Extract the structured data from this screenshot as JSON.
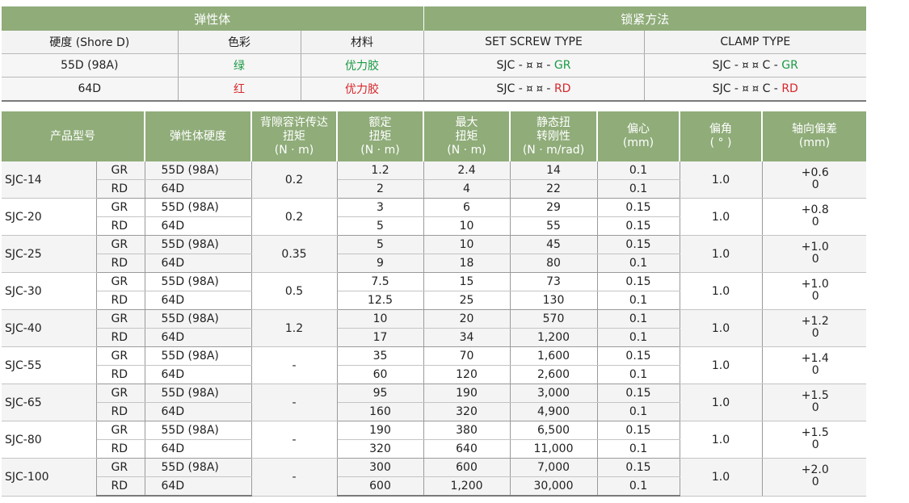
{
  "top_table": {
    "group_headers": [
      "弹性体",
      "锁紧方法"
    ],
    "subheaders": [
      "硬度 (Shore D)",
      "色彩",
      "材料",
      "SET SCREW TYPE",
      "CLAMP TYPE"
    ],
    "rows": [
      {
        "hardness": "55D (98A)",
        "color": "绿",
        "material": "优力胶",
        "set_screw": {
          "prefix": "SJC - ",
          "boxes": "¤ ¤",
          "sep": " - ",
          "code": "GR"
        },
        "clamp": {
          "prefix": "SJC - ",
          "boxes": "¤ ¤",
          "sep": " C - ",
          "code": "GR"
        }
      },
      {
        "hardness": "64D",
        "color": "红",
        "material": "优力胶",
        "set_screw": {
          "prefix": "SJC - ",
          "boxes": "¤ ¤",
          "sep": " - ",
          "code": "RD"
        },
        "clamp": {
          "prefix": "SJC - ",
          "boxes": "¤ ¤",
          "sep": " C - ",
          "code": "RD"
        }
      }
    ]
  },
  "main_table": {
    "headers": [
      [
        "产品型号"
      ],
      [
        "弹性体硬度"
      ],
      [
        "背隙容许传达",
        "扭矩",
        "(N · m)"
      ],
      [
        "额定",
        "扭矩",
        "(N · m)"
      ],
      [
        "最大",
        "扭矩",
        "(N · m)"
      ],
      [
        "静态扭",
        "转刚性",
        "(N · m/rad)"
      ],
      [
        "偏心",
        "(mm)"
      ],
      [
        "偏角",
        "( ° )"
      ],
      [
        "轴向偏差",
        "(mm)"
      ]
    ],
    "models": [
      {
        "model": "SJC-14",
        "backlash_torque": "0.2",
        "angle": "1.0",
        "axial_upper": "+0.6",
        "axial_lower": "0",
        "rows": [
          {
            "code": "GR",
            "hardness": "55D  (98A)",
            "rated": "1.2",
            "max": "2.4",
            "stiffness": "14",
            "eccentric": "0.1"
          },
          {
            "code": "RD",
            "hardness": "64D",
            "rated": "2",
            "max": "4",
            "stiffness": "22",
            "eccentric": "0.1"
          }
        ]
      },
      {
        "model": "SJC-20",
        "backlash_torque": "0.2",
        "angle": "1.0",
        "axial_upper": "+0.8",
        "axial_lower": "0",
        "rows": [
          {
            "code": "GR",
            "hardness": "55D  (98A)",
            "rated": "3",
            "max": "6",
            "stiffness": "29",
            "eccentric": "0.15"
          },
          {
            "code": "RD",
            "hardness": "64D",
            "rated": "5",
            "max": "10",
            "stiffness": "55",
            "eccentric": "0.15"
          }
        ]
      },
      {
        "model": "SJC-25",
        "backlash_torque": "0.35",
        "angle": "1.0",
        "axial_upper": "+1.0",
        "axial_lower": "0",
        "rows": [
          {
            "code": "GR",
            "hardness": "55D  (98A)",
            "rated": "5",
            "max": "10",
            "stiffness": "45",
            "eccentric": "0.15"
          },
          {
            "code": "RD",
            "hardness": "64D",
            "rated": "9",
            "max": "18",
            "stiffness": "80",
            "eccentric": "0.1"
          }
        ]
      },
      {
        "model": "SJC-30",
        "backlash_torque": "0.5",
        "angle": "1.0",
        "axial_upper": "+1.0",
        "axial_lower": "0",
        "rows": [
          {
            "code": "GR",
            "hardness": "55D  (98A)",
            "rated": "7.5",
            "max": "15",
            "stiffness": "73",
            "eccentric": "0.15"
          },
          {
            "code": "RD",
            "hardness": "64D",
            "rated": "12.5",
            "max": "25",
            "stiffness": "130",
            "eccentric": "0.1"
          }
        ]
      },
      {
        "model": "SJC-40",
        "backlash_torque": "1.2",
        "angle": "1.0",
        "axial_upper": "+1.2",
        "axial_lower": "0",
        "rows": [
          {
            "code": "GR",
            "hardness": "55D  (98A)",
            "rated": "10",
            "max": "20",
            "stiffness": "570",
            "eccentric": "0.1"
          },
          {
            "code": "RD",
            "hardness": "64D",
            "rated": "17",
            "max": "34",
            "stiffness": "1,200",
            "eccentric": "0.1"
          }
        ]
      },
      {
        "model": "SJC-55",
        "backlash_torque": "-",
        "angle": "1.0",
        "axial_upper": "+1.4",
        "axial_lower": "0",
        "rows": [
          {
            "code": "GR",
            "hardness": "55D  (98A)",
            "rated": "35",
            "max": "70",
            "stiffness": "1,600",
            "eccentric": "0.15"
          },
          {
            "code": "RD",
            "hardness": "64D",
            "rated": "60",
            "max": "120",
            "stiffness": "2,600",
            "eccentric": "0.1"
          }
        ]
      },
      {
        "model": "SJC-65",
        "backlash_torque": "-",
        "angle": "1.0",
        "axial_upper": "+1.5",
        "axial_lower": "0",
        "rows": [
          {
            "code": "GR",
            "hardness": "55D  (98A)",
            "rated": "95",
            "max": "190",
            "stiffness": "3,000",
            "eccentric": "0.15"
          },
          {
            "code": "RD",
            "hardness": "64D",
            "rated": "160",
            "max": "320",
            "stiffness": "4,900",
            "eccentric": "0.1"
          }
        ]
      },
      {
        "model": "SJC-80",
        "backlash_torque": "-",
        "angle": "1.0",
        "axial_upper": "+1.5",
        "axial_lower": "0",
        "rows": [
          {
            "code": "GR",
            "hardness": "55D  (98A)",
            "rated": "190",
            "max": "380",
            "stiffness": "6,500",
            "eccentric": "0.15"
          },
          {
            "code": "RD",
            "hardness": "64D",
            "rated": "320",
            "max": "640",
            "stiffness": "11,000",
            "eccentric": "0.1"
          }
        ]
      },
      {
        "model": "SJC-100",
        "backlash_torque": "-",
        "angle": "1.0",
        "axial_upper": "+2.0",
        "axial_lower": "0",
        "rows": [
          {
            "code": "GR",
            "hardness": "55D  (98A)",
            "rated": "300",
            "max": "600",
            "stiffness": "7,000",
            "eccentric": "0.15"
          },
          {
            "code": "RD",
            "hardness": "64D",
            "rated": "600",
            "max": "1,200",
            "stiffness": "30,000",
            "eccentric": "0.1"
          }
        ]
      }
    ]
  },
  "colors": {
    "header_green": "#8fac79",
    "text_green": "#1a9a44",
    "text_red": "#d8262b"
  }
}
